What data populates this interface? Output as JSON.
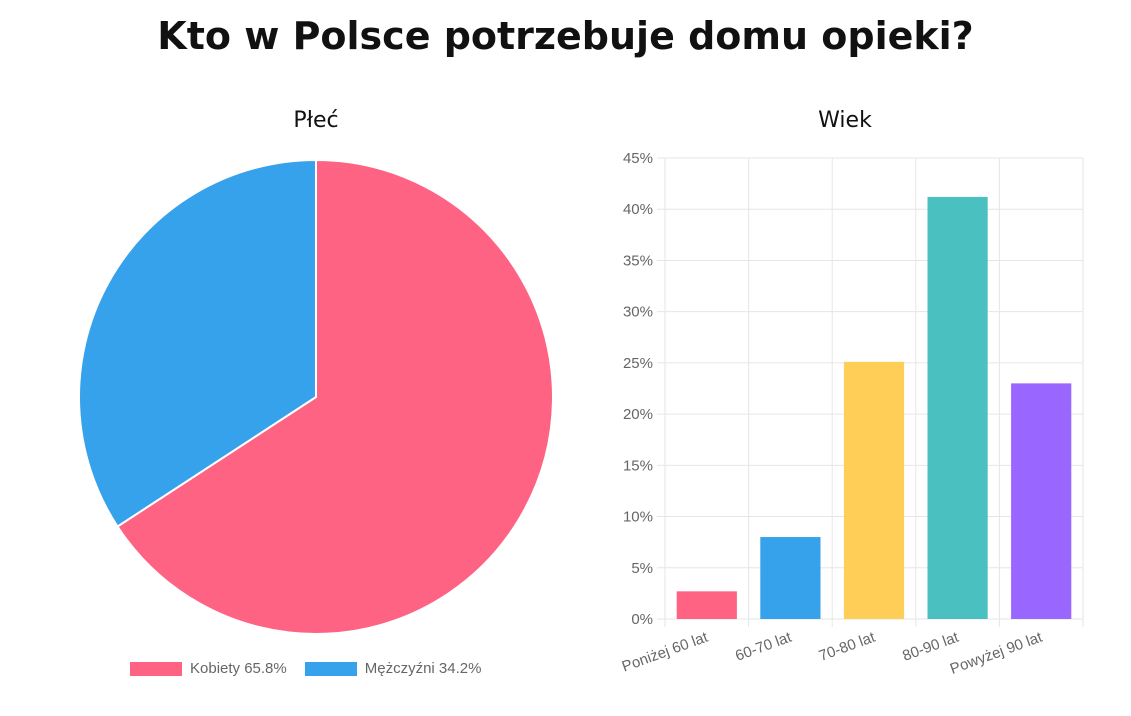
{
  "title": "Kto w Polsce potrzebuje domu opieki?",
  "chart_data": [
    {
      "type": "pie",
      "title": "Płeć",
      "slices": [
        {
          "label": "Kobiety 65.8%",
          "value": 65.8,
          "color": "#FF6384"
        },
        {
          "label": "Mężczyźni 34.2%",
          "value": 34.2,
          "color": "#36A2EB"
        }
      ],
      "legend": "bottom"
    },
    {
      "type": "bar",
      "title": "Wiek",
      "categories": [
        "Poniżej 60 lat",
        "60-70 lat",
        "70-80 lat",
        "80-90 lat",
        "Powyżej 90 lat"
      ],
      "values": [
        2.7,
        8.0,
        25.1,
        41.2,
        23.0
      ],
      "colors": [
        "#FF6384",
        "#36A2EB",
        "#FFCE56",
        "#4BC0C0",
        "#9966FF"
      ],
      "ylim": [
        0,
        45
      ],
      "yticks": [
        "0%",
        "5%",
        "10%",
        "15%",
        "20%",
        "25%",
        "30%",
        "35%",
        "40%",
        "45%"
      ],
      "ytick_values": [
        0,
        5,
        10,
        15,
        20,
        25,
        30,
        35,
        40,
        45
      ],
      "grid": true
    }
  ]
}
